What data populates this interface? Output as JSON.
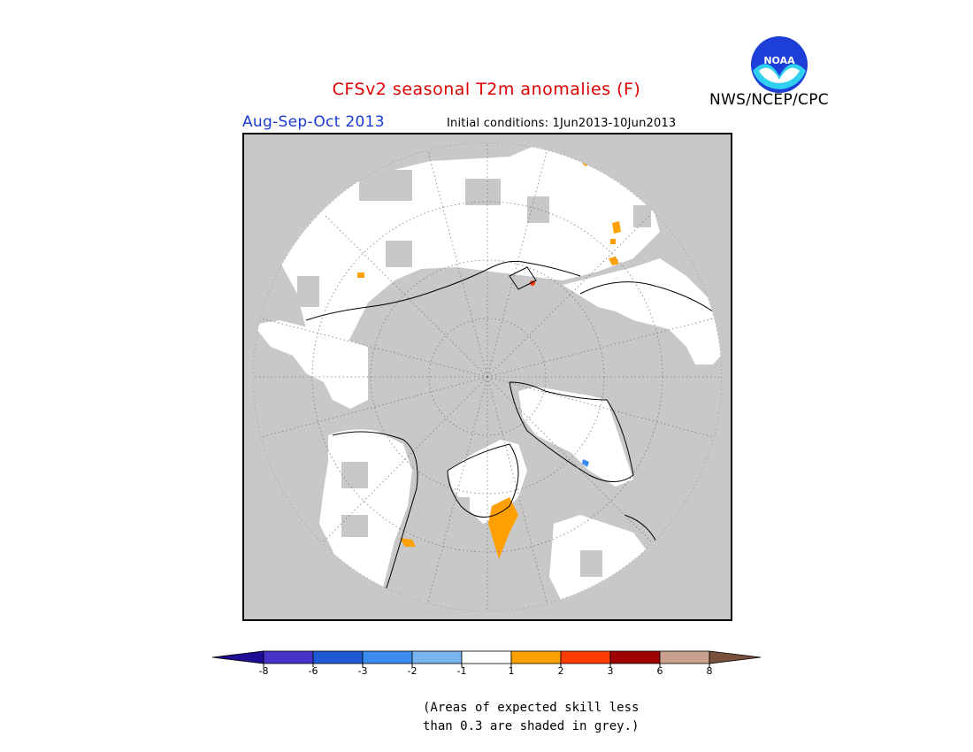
{
  "header": {
    "title": "CFSv2 seasonal T2m anomalies (F)",
    "period": "Aug-Sep-Oct 2013",
    "initial_conditions": "Initial conditions: 1Jun2013-10Jun2013",
    "agency": "NWS/NCEP/CPC",
    "logo_text": "NOAA"
  },
  "colorbar": {
    "colors": [
      "#1e0e96",
      "#4634c8",
      "#1e5ad2",
      "#3c8cf0",
      "#78b4f0",
      "#ffffff",
      "#ffa000",
      "#ff3c00",
      "#a00000",
      "#c8a08c",
      "#78503c"
    ],
    "ticks": [
      "-8",
      "-6",
      "-3",
      "-2",
      "-1",
      "1",
      "2",
      "3",
      "6",
      "8"
    ]
  },
  "map": {
    "background_color": "#c8c8c8",
    "land_color": "#ffffff",
    "warm_color": "#ffa000"
  },
  "footnote": {
    "line1": "(Areas of expected skill less",
    "line2": "than 0.3 are shaded in grey.)"
  }
}
